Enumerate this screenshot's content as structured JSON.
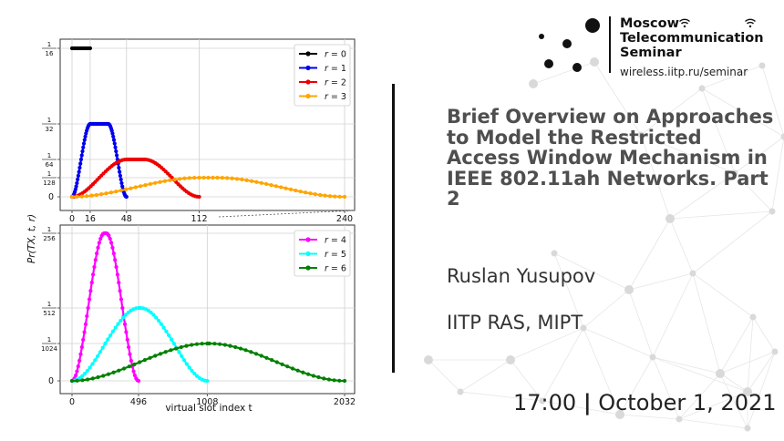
{
  "seminar": {
    "title_lines": [
      "Moscow",
      "Telecommunication",
      "Seminar"
    ],
    "url": "wireless.iitp.ru/seminar"
  },
  "talk": {
    "title": "Brief Overview on Approaches to Model the Restricted Access Window Mechanism in IEEE 802.11ah Networks. Part 2",
    "author": "Ruslan Yusupov",
    "affiliation": "IITP RAS, MIPT",
    "time": "17:00",
    "separator": "|",
    "date": "October 1, 2021"
  },
  "colors": {
    "r0": "#000000",
    "r1": "#0000ee",
    "r2": "#ee0000",
    "r3": "#ffa500",
    "r4": "#ff00ff",
    "r5": "#00ffff",
    "r6": "#008000"
  },
  "chart_data": [
    {
      "type": "line",
      "ylabel": "Pr(TX, t, r)",
      "xlabel": "",
      "x_ticks": [
        "0",
        "16",
        "48",
        "112",
        "240"
      ],
      "y_ticks": [
        {
          "num": "1",
          "den": "16"
        },
        {
          "num": "1",
          "den": "32"
        },
        {
          "num": "1",
          "den": "64"
        },
        {
          "num": "1",
          "den": "128"
        },
        {
          "num": "",
          "den": "0"
        }
      ],
      "legend_position": "top-right",
      "grid": true,
      "series": [
        {
          "name": "r = 0",
          "label": "r",
          "value": "= 0",
          "x": [
            0,
            16
          ],
          "y": [
            0.0625,
            0.0625
          ]
        },
        {
          "name": "r = 1",
          "label": "r",
          "value": "= 1",
          "x": [
            0,
            16,
            32,
            48
          ],
          "y": [
            0,
            0.03125,
            0.03125,
            0
          ]
        },
        {
          "name": "r = 2",
          "label": "r",
          "value": "= 2",
          "x": [
            0,
            48,
            64,
            112
          ],
          "y": [
            0,
            0.015625,
            0.015625,
            0
          ]
        },
        {
          "name": "r = 3",
          "label": "r",
          "value": "= 3",
          "x": [
            0,
            112,
            128,
            240
          ],
          "y": [
            0,
            0.0078125,
            0.0078125,
            0
          ]
        }
      ]
    },
    {
      "type": "line",
      "ylabel": "Pr(TX, t, r)",
      "xlabel": "virtual slot index t",
      "x_ticks": [
        "0",
        "496",
        "1008",
        "2032"
      ],
      "y_ticks": [
        {
          "num": "1",
          "den": "256"
        },
        {
          "num": "1",
          "den": "512"
        },
        {
          "num": "1",
          "den": "1024"
        },
        {
          "num": "",
          "den": "0"
        }
      ],
      "legend_position": "top-right",
      "grid": true,
      "series": [
        {
          "name": "r = 4",
          "label": "r",
          "value": "= 4",
          "x": [
            0,
            240,
            256,
            496
          ],
          "y": [
            0,
            0.00390625,
            0.00390625,
            0
          ]
        },
        {
          "name": "r = 5",
          "label": "r",
          "value": "= 5",
          "x": [
            0,
            496,
            512,
            1008
          ],
          "y": [
            0,
            0.001953125,
            0.001953125,
            0
          ]
        },
        {
          "name": "r = 6",
          "label": "r",
          "value": "= 6",
          "x": [
            0,
            1008,
            1024,
            2032
          ],
          "y": [
            0,
            0.0009765625,
            0.0009765625,
            0
          ]
        }
      ]
    }
  ]
}
